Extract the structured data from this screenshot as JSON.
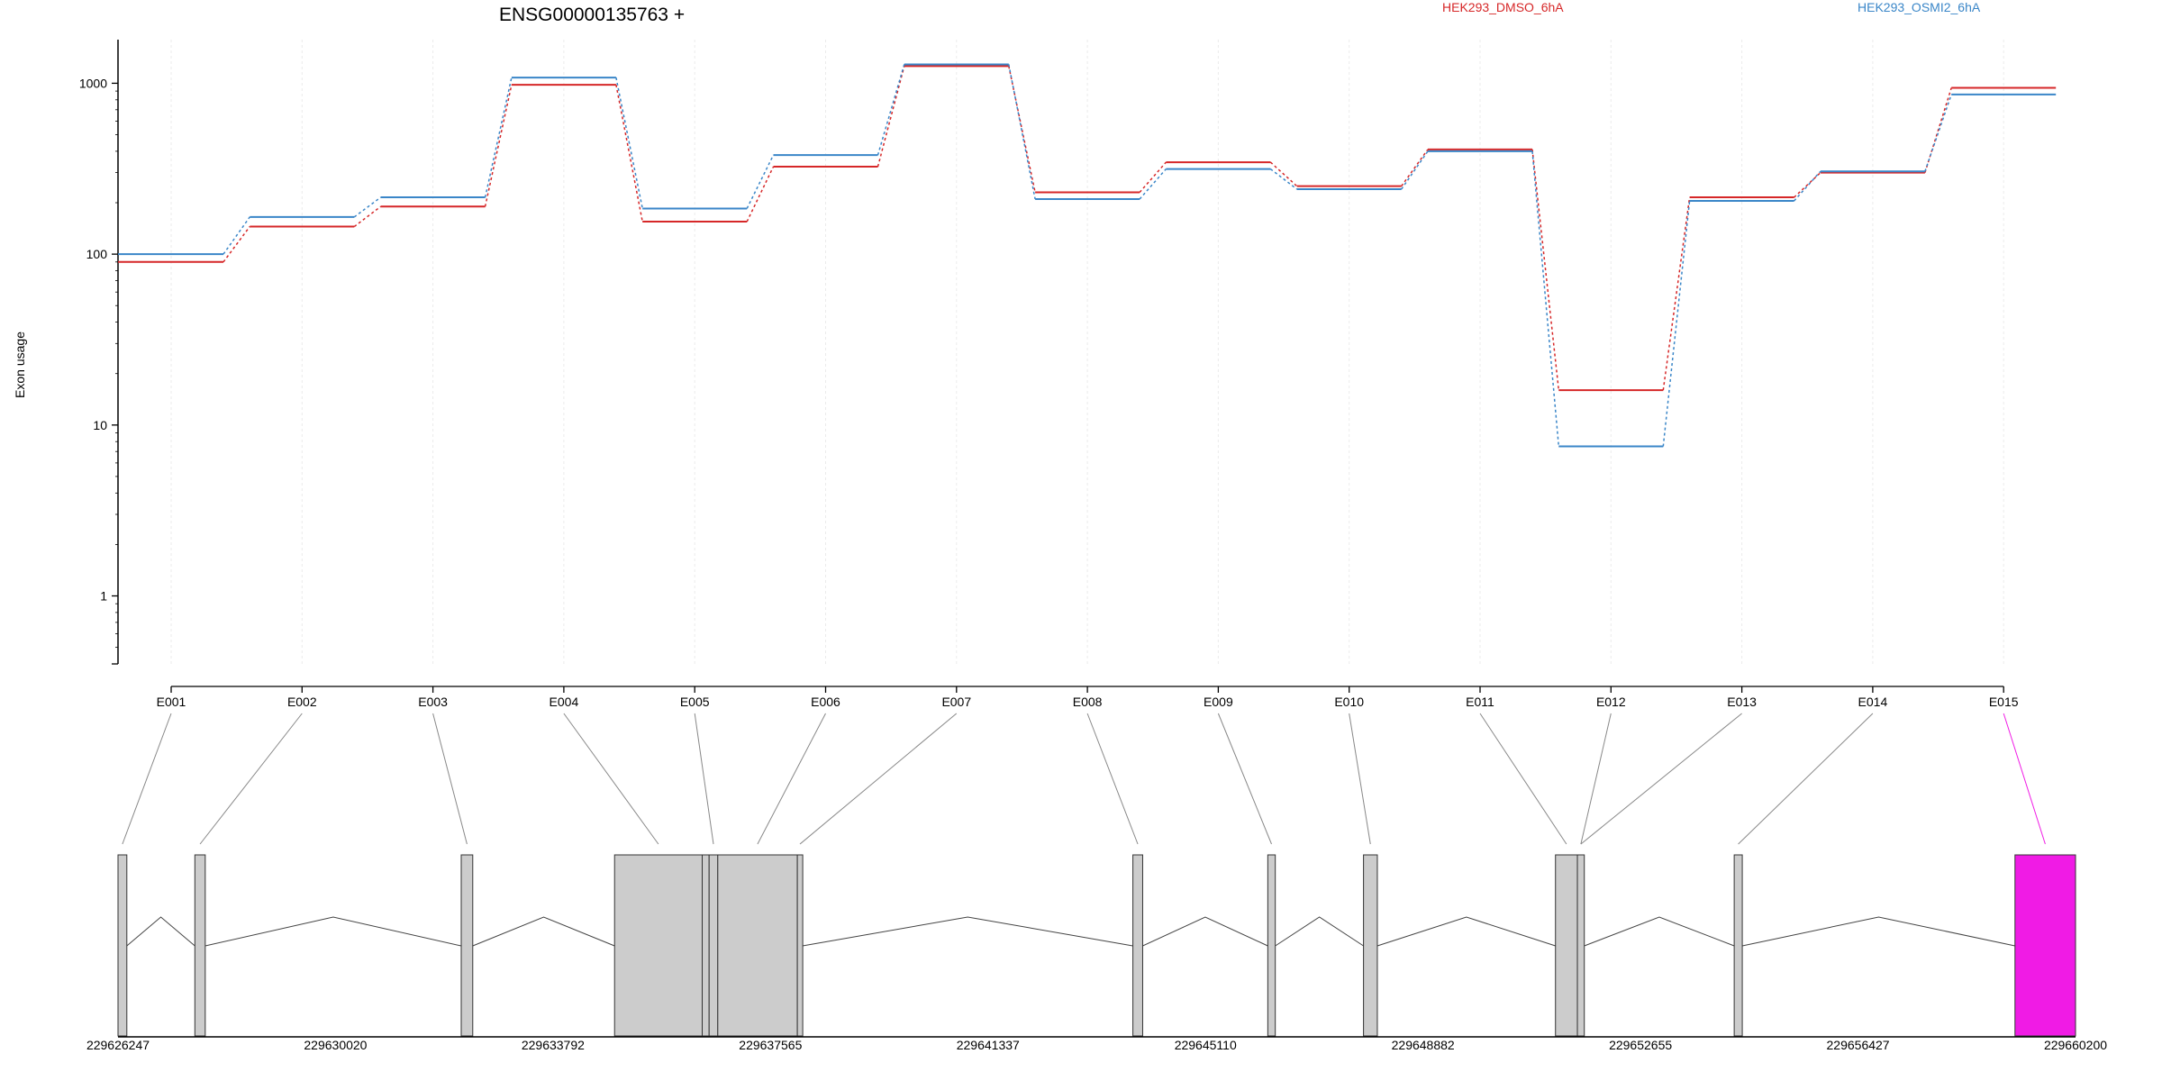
{
  "chart_data": {
    "type": "line",
    "title": "ENSG00000135763 +",
    "ylabel": "Exon usage",
    "y_scale": "log",
    "y_ticks": [
      1,
      10,
      100,
      1000
    ],
    "ylim": [
      0.4,
      1800
    ],
    "grid": true,
    "legend_placement": "top-right",
    "categories": [
      "E001",
      "E002",
      "E003",
      "E004",
      "E005",
      "E006",
      "E007",
      "E008",
      "E009",
      "E010",
      "E011",
      "E012",
      "E013",
      "E014",
      "E015"
    ],
    "series": [
      {
        "name": "HEK293_DMSO_6hA",
        "color": "#d62728",
        "values": [
          90,
          145,
          190,
          980,
          155,
          325,
          1260,
          230,
          345,
          250,
          410,
          16,
          215,
          300,
          940
        ]
      },
      {
        "name": "HEK293_OSMI2_6hA",
        "color": "#3a86c8",
        "values": [
          100,
          165,
          215,
          1080,
          185,
          380,
          1290,
          210,
          315,
          240,
          400,
          7.5,
          205,
          305,
          860
        ]
      }
    ],
    "genomic_axis_ticks": [
      "229626247",
      "229630020",
      "229633792",
      "229637565",
      "229641337",
      "229645110",
      "229648882",
      "229652655",
      "229656427",
      "229660200"
    ],
    "genomic_range": [
      229626247,
      229660200
    ],
    "exons": [
      {
        "start": 229626247,
        "end": 229626400,
        "color": "#cccccc"
      },
      {
        "start": 229627580,
        "end": 229627760,
        "color": "#cccccc"
      },
      {
        "start": 229632200,
        "end": 229632400,
        "color": "#cccccc"
      },
      {
        "start": 229634860,
        "end": 229636380,
        "color": "#cccccc"
      },
      {
        "start": 229636380,
        "end": 229636500,
        "color": "#cccccc"
      },
      {
        "start": 229636500,
        "end": 229636650,
        "color": "#cccccc"
      },
      {
        "start": 229636650,
        "end": 229638030,
        "color": "#cccccc"
      },
      {
        "start": 229638030,
        "end": 229638120,
        "color": "#cccccc"
      },
      {
        "start": 229643850,
        "end": 229644020,
        "color": "#cccccc"
      },
      {
        "start": 229646190,
        "end": 229646320,
        "color": "#cccccc"
      },
      {
        "start": 229647850,
        "end": 229648090,
        "color": "#cccccc"
      },
      {
        "start": 229651180,
        "end": 229651560,
        "color": "#cccccc"
      },
      {
        "start": 229651560,
        "end": 229651680,
        "color": "#cccccc"
      },
      {
        "start": 229654280,
        "end": 229654420,
        "color": "#cccccc"
      },
      {
        "start": 229659150,
        "end": 229660200,
        "color": "#f01be5"
      }
    ],
    "exon_connectors": [
      0,
      1,
      2,
      3,
      5,
      6,
      7,
      8,
      9,
      10,
      11,
      12,
      12,
      13,
      14
    ],
    "highlight_color": "#f01be5"
  }
}
